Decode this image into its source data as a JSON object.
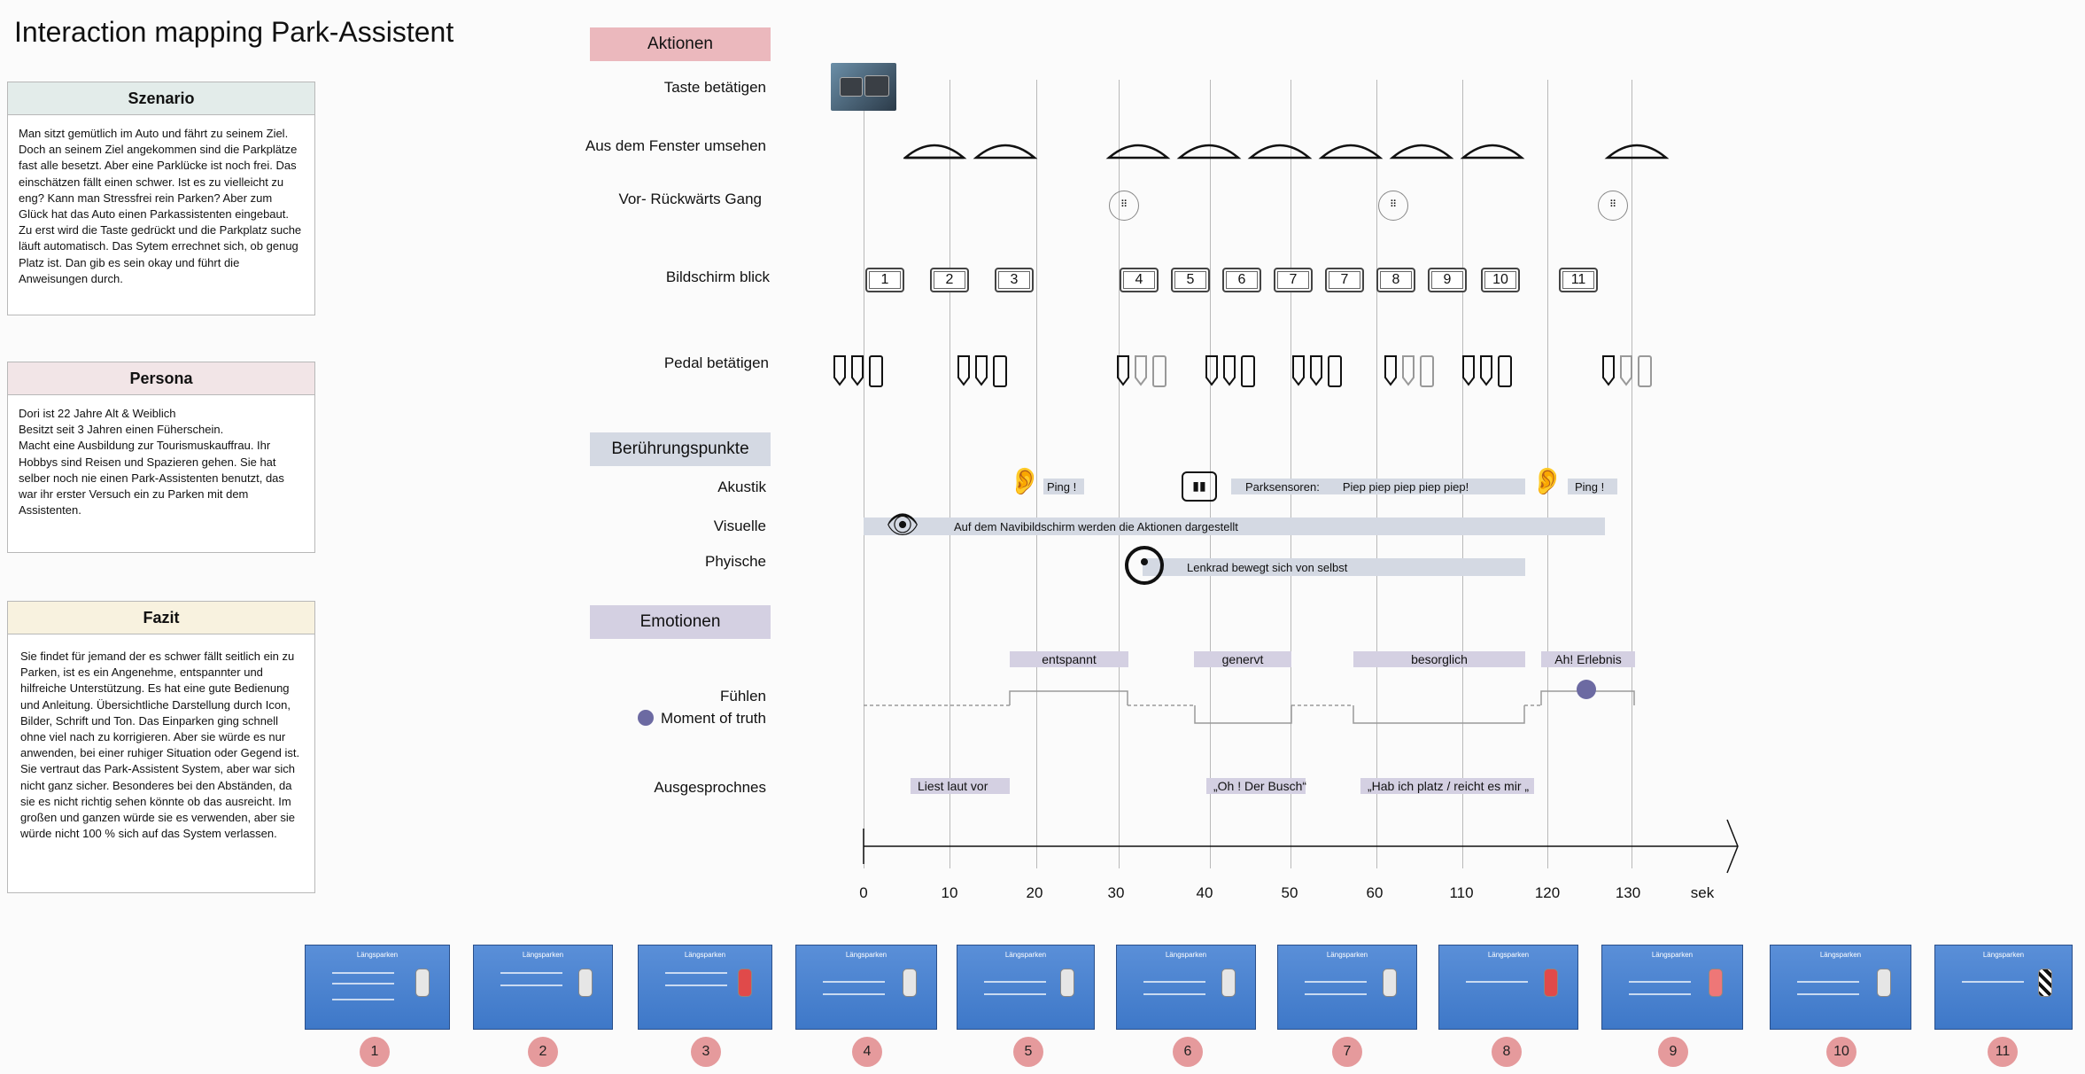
{
  "title": "Interaction mapping Park-Assistent",
  "cards": {
    "szenario": {
      "heading": "Szenario",
      "color": "#e3ecea",
      "text": "Man sitzt gemütlich im Auto und fährt zu seinem Ziel. Doch an seinem Ziel angekommen sind die Parkplätze fast alle besetzt. Aber eine Parklücke ist noch frei. Das einschätzen fällt einen schwer. Ist es zu vielleicht zu eng? Kann man Stressfrei rein Parken? Aber zum Glück hat das Auto einen Parkassistenten eingebaut. Zu erst wird die Taste gedrückt und die Parkplatz suche läuft automatisch. Das Sytem errechnet sich, ob genug Platz ist. Dan gib es sein okay und führt die Anweisungen durch."
    },
    "persona": {
      "heading": "Persona",
      "color": "#f2e5e7",
      "text": "Dori ist 22 Jahre Alt & Weiblich\nBesitzt seit 3 Jahren einen Füherschein.\nMacht eine Ausbildung zur Tourismuskauffrau. Ihr Hobbys sind Reisen und Spazieren gehen. Sie hat selber noch nie einen Park-Assistenten benutzt, das war ihr erster Versuch ein zu Parken mit dem Assistenten."
    },
    "fazit": {
      "heading": "Fazit",
      "color": "#f8f2df",
      "text": "Sie findet für jemand der es schwer fällt seitlich ein zu Parken, ist es ein Angenehme, entspannter und hilfreiche Unterstützung. Es hat eine gute Bedienung und Anleitung. Übersichtliche Darstellung durch Icon, Bilder, Schrift und Ton. Das Einparken ging schnell ohne viel nach zu korrigieren. Aber sie würde es nur anwenden, bei einer ruhiger Situation oder Gegend ist. Sie vertraut das Park-Assistent System, aber war sich nicht ganz sicher. Besonderes bei den Abständen, da sie es nicht richtig sehen könnte ob das ausreicht. Im großen und ganzen würde sie es verwenden, aber sie würde nicht 100 % sich auf das System verlassen."
    }
  },
  "sections": {
    "aktionen": {
      "label": "Aktionen",
      "color": "#ebb8bd"
    },
    "beruehrung": {
      "label": "Berührungspunkte",
      "color": "#d4d9e3"
    },
    "emotionen": {
      "label": "Emotionen",
      "color": "#d4d0e2"
    }
  },
  "rows": {
    "taste": "Taste betätigen",
    "fenster": "Aus dem Fenster umsehen",
    "gang": "Vor- Rückwärts Gang",
    "bildschirm": "Bildschirm blick",
    "pedal": "Pedal betätigen",
    "akustik": "Akustik",
    "visuelle": "Visuelle",
    "phyische": "Phyische",
    "fuehlen": "Fühlen",
    "moment": "Moment of truth",
    "ausgesprochnes": "Ausgesprochnes"
  },
  "screens": [
    "1",
    "2",
    "3",
    "4",
    "5",
    "6",
    "7",
    "7",
    "8",
    "9",
    "10",
    "11"
  ],
  "touchpoints": {
    "ping1": "Ping !",
    "parksensoren": "Parksensoren:",
    "piep": "Piep piep  piep piep piep!",
    "ping2": "Ping !",
    "visuelle": "Auf dem Navibildschirm werden die Aktionen dargestellt",
    "lenkrad": "Lenkrad bewegt sich von selbst"
  },
  "emotions": [
    "entspannt",
    "genervt",
    "besorglich",
    "Ah! Erlebnis"
  ],
  "quotes": [
    "Liest  laut vor",
    "„Oh ! Der Busch“",
    "„Hab ich platz / reicht es mir „"
  ],
  "axis": {
    "ticks": [
      "0",
      "10",
      "20",
      "30",
      "40",
      "50",
      "60",
      "110",
      "120",
      "130"
    ],
    "unit": "sek"
  },
  "thumbnails": {
    "badges": [
      "1",
      "2",
      "3",
      "4",
      "5",
      "6",
      "7",
      "8",
      "9",
      "10",
      "11"
    ],
    "heading": "Längsparken",
    "badge_color": "#e59a9c"
  }
}
